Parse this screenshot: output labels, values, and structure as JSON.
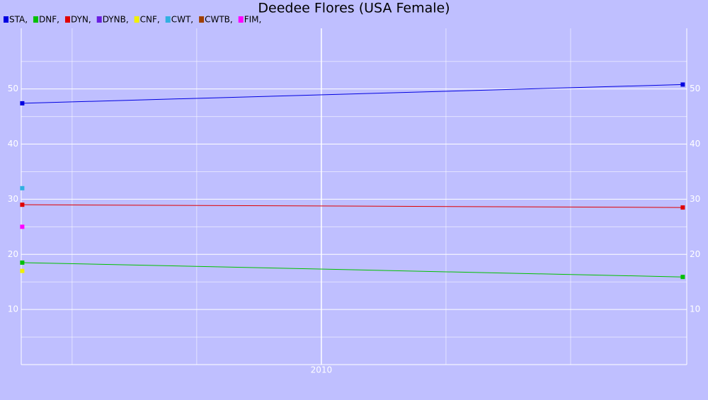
{
  "chart_data": {
    "type": "line",
    "title": "Deedee Flores (USA Female)",
    "x": [
      2008.8,
      2011.45
    ],
    "series": [
      {
        "name": "STA,",
        "color": "#0000e0",
        "values": [
          47.4,
          50.8
        ]
      },
      {
        "name": "DNF,",
        "color": "#00c000",
        "values": [
          18.5,
          15.9
        ]
      },
      {
        "name": "DYN,",
        "color": "#e00000",
        "values": [
          29,
          28.5
        ]
      },
      {
        "name": "DYNB,",
        "color": "#6a1ee0",
        "values": [
          null,
          null
        ]
      },
      {
        "name": "CNF,",
        "color": "#f0f000",
        "values": [
          17,
          null
        ]
      },
      {
        "name": "CWT,",
        "color": "#30b0e0",
        "values": [
          32,
          null
        ]
      },
      {
        "name": "CWTB,",
        "color": "#a04000",
        "values": [
          null,
          null
        ]
      },
      {
        "name": "FIM,",
        "color": "#ff00ff",
        "values": [
          25,
          null
        ]
      }
    ],
    "xlim": [
      2008.796,
      2011.466
    ],
    "xticks": [
      {
        "value": 2010,
        "label": "2010"
      }
    ],
    "xminor": [
      2009,
      2009.5,
      2010.5,
      2011
    ],
    "ylim": [
      0,
      61
    ],
    "yticks": [
      10,
      20,
      30,
      40,
      50
    ],
    "yminor": [
      5,
      15,
      25,
      35,
      45,
      55
    ],
    "grid": true
  }
}
